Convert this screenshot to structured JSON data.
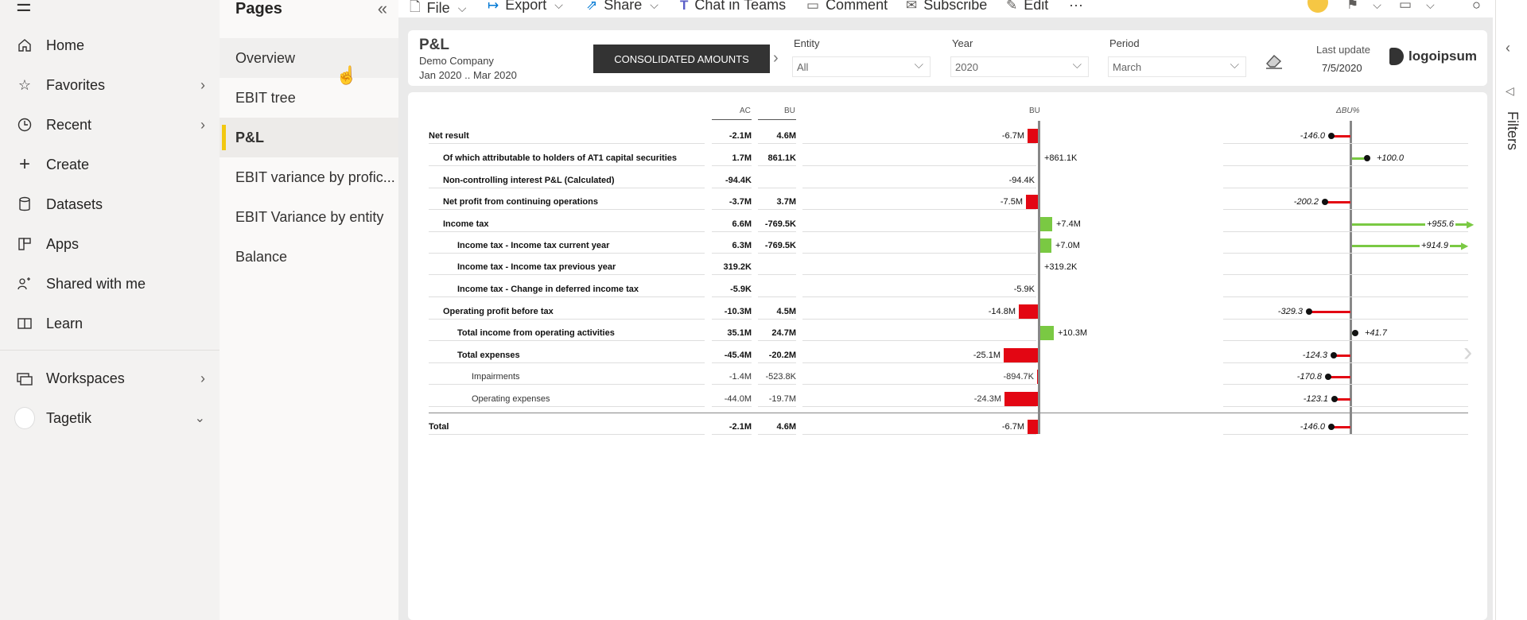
{
  "nav": {
    "items": [
      {
        "label": "Home",
        "icon": "home-icon"
      },
      {
        "label": "Favorites",
        "icon": "star-icon"
      },
      {
        "label": "Recent",
        "icon": "clock-icon"
      },
      {
        "label": "Create",
        "icon": "plus-icon"
      },
      {
        "label": "Datasets",
        "icon": "database-icon"
      },
      {
        "label": "Apps",
        "icon": "apps-icon"
      },
      {
        "label": "Shared with me",
        "icon": "shared-icon"
      },
      {
        "label": "Learn",
        "icon": "book-icon"
      }
    ],
    "workspaces_label": "Workspaces",
    "tagetik_label": "Tagetik"
  },
  "pages": {
    "title": "Pages",
    "items": [
      "Overview",
      "EBIT tree",
      "P&L",
      "EBIT variance by profic...",
      "EBIT Variance by entity",
      "Balance"
    ]
  },
  "toolbar": {
    "file": "File",
    "export": "Export",
    "share": "Share",
    "teams": "Chat in Teams",
    "comment": "Comment",
    "subscribe": "Subscribe",
    "edit": "Edit",
    "more": "···"
  },
  "report": {
    "title": "P&L",
    "company": "Demo Company",
    "period": "Jan 2020 .. Mar 2020",
    "consolidated": "CONSOLIDATED AMOUNTS",
    "entity_label": "Entity",
    "entity_value": "All",
    "year_label": "Year",
    "year_value": "2020",
    "period_label": "Period",
    "period_value": "March",
    "last_update_label": "Last update",
    "last_update_value": "7/5/2020",
    "logo": "logoipsum"
  },
  "filters_label": "Filters",
  "table": {
    "col_ac": "AC",
    "col_bu": "BU",
    "col_bu_chart": "BU",
    "col_dbu": "ΔBU%",
    "rows": [
      {
        "label": "Net result",
        "ac": "-2.1M",
        "bu": "4.6M",
        "var": "-6.7M",
        "pct": "-146.0",
        "bold": true,
        "indent": 0,
        "vv": -1,
        "pv": -0.146
      },
      {
        "label": "Of which attributable to holders of AT1 capital securities",
        "ac": "1.7M",
        "bu": "861.1K",
        "var": "+861.1K",
        "pct": "+100.0",
        "bold": true,
        "indent": 1,
        "vv": 0.0,
        "pv": 0.1
      },
      {
        "label": "Non-controlling interest P&L (Calculated)",
        "ac": "-94.4K",
        "bu": "",
        "var": "-94.4K",
        "pct": "",
        "bold": true,
        "indent": 1,
        "vv": 0.0,
        "pv": null
      },
      {
        "label": "Net profit from continuing operations",
        "ac": "-3.7M",
        "bu": "3.7M",
        "var": "-7.5M",
        "pct": "-200.2",
        "bold": true,
        "indent": 1,
        "vv": -1.1,
        "pv": -0.2
      },
      {
        "label": "Income tax",
        "ac": "6.6M",
        "bu": "-769.5K",
        "var": "+7.4M",
        "pct": "+955.6",
        "bold": true,
        "indent": 2,
        "vv": 1.1,
        "pv": 0.96
      },
      {
        "label": "Income tax - Income tax current year",
        "ac": "6.3M",
        "bu": "-769.5K",
        "var": "+7.0M",
        "pct": "+914.9",
        "bold": true,
        "indent": 3,
        "vv": 1.05,
        "pv": 0.91
      },
      {
        "label": "Income tax - Income tax previous year",
        "ac": "319.2K",
        "bu": "",
        "var": "+319.2K",
        "pct": "",
        "bold": true,
        "indent": 3,
        "vv": 0.0,
        "pv": null
      },
      {
        "label": "Income tax - Change in deferred income tax",
        "ac": "-5.9K",
        "bu": "",
        "var": "-5.9K",
        "pct": "",
        "bold": true,
        "indent": 3,
        "vv": 0.0,
        "pv": null
      },
      {
        "label": "Operating profit before tax",
        "ac": "-10.3M",
        "bu": "4.5M",
        "var": "-14.8M",
        "pct": "-329.3",
        "bold": true,
        "indent": 2,
        "vv": -1.8,
        "pv": -0.33
      },
      {
        "label": "Total income from operating activities",
        "ac": "35.1M",
        "bu": "24.7M",
        "var": "+10.3M",
        "pct": "+41.7",
        "bold": true,
        "indent": 3,
        "vv": 1.3,
        "pv": 0.0
      },
      {
        "label": "Total expenses",
        "ac": "-45.4M",
        "bu": "-20.2M",
        "var": "-25.1M",
        "pct": "-124.3",
        "bold": true,
        "indent": 3,
        "vv": -3.2,
        "pv": -0.124
      },
      {
        "label": "Impairments",
        "ac": "-1.4M",
        "bu": "-523.8K",
        "var": "-894.7K",
        "pct": "-170.8",
        "bold": false,
        "indent": 4,
        "vv": -0.11,
        "pv": -0.17
      },
      {
        "label": "Operating expenses",
        "ac": "-44.0M",
        "bu": "-19.7M",
        "var": "-24.3M",
        "pct": "-123.1",
        "bold": false,
        "indent": 4,
        "vv": -3.1,
        "pv": -0.123
      },
      {
        "label": "Total",
        "ac": "-2.1M",
        "bu": "4.6M",
        "var": "-6.7M",
        "pct": "-146.0",
        "bold": true,
        "indent": 0,
        "vv": -1,
        "pv": -0.146
      }
    ]
  }
}
